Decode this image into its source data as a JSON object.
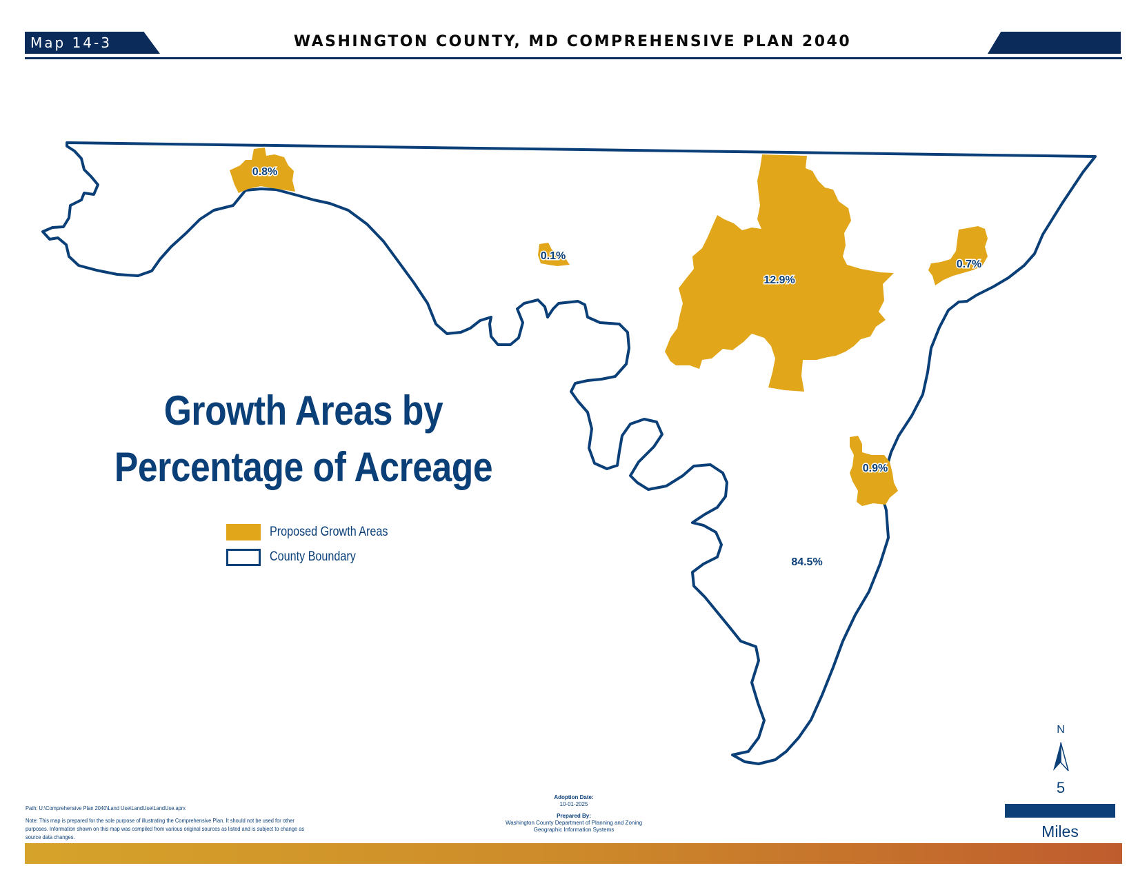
{
  "header": {
    "map_number": "Map 14-3",
    "title": "WASHINGTON COUNTY, MD COMPREHENSIVE PLAN 2040"
  },
  "map": {
    "title_line1": "Growth Areas by",
    "title_line2": "Percentage of Acreage",
    "colors": {
      "growth_area_fill": "#e2a61b",
      "boundary_stroke": "#0b3f78",
      "label_text": "#0b3f78"
    },
    "area_labels": {
      "hancock": "0.8%",
      "clear_spring": "0.1%",
      "hagerstown": "12.9%",
      "smithsburg": "0.7%",
      "boonsboro": "0.9%",
      "remainder": "84.5%"
    }
  },
  "legend": {
    "items": [
      {
        "label": "Proposed Growth Areas",
        "style": "filled"
      },
      {
        "label": "County Boundary",
        "style": "outline"
      }
    ]
  },
  "north_arrow": {
    "letter": "N"
  },
  "scale_bar": {
    "value": "5",
    "unit": "Miles"
  },
  "footer": {
    "path": "Path: U:\\Comprehensive Plan 2040\\Land Use\\LandUse\\LandUse.aprx",
    "note": "Note: This map is prepared for the sole purpose of illustrating the Comprehensive Plan. It should not be used for other purposes. Information shown on this map was compiled from various original sources as listed and is subject to change as source data changes.",
    "adoption_label": "Adoption Date:",
    "adoption_date": "10-01-2025",
    "prepared_label": "Prepared By:",
    "prepared_line1": "Washington County Department of Planning and Zoning",
    "prepared_line2": "Geographic Information Systems"
  }
}
